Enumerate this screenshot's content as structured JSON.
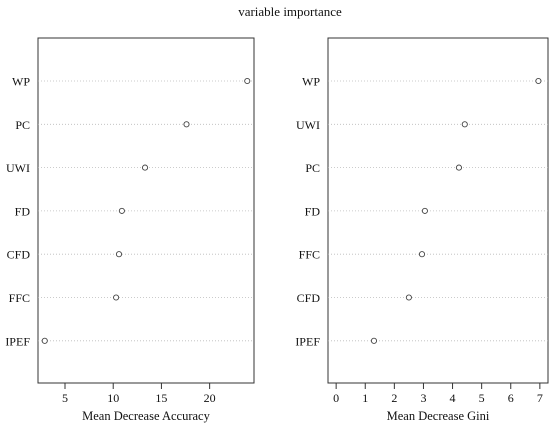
{
  "figure_title": "variable importance",
  "chart_data": [
    {
      "type": "scatter",
      "title": "",
      "xlabel": "Mean Decrease Accuracy",
      "ylabel": "",
      "xlim": [
        2.2,
        24.6
      ],
      "xticks": [
        5,
        10,
        15,
        20
      ],
      "categories": [
        "WP",
        "PC",
        "UWI",
        "FD",
        "CFD",
        "FFC",
        "IPEF"
      ],
      "values": [
        23.9,
        17.6,
        13.3,
        10.9,
        10.6,
        10.3,
        2.9
      ],
      "grid": "dotted horizontal lines at each variable"
    },
    {
      "type": "scatter",
      "title": "",
      "xlabel": "Mean Decrease Gini",
      "ylabel": "",
      "xlim": [
        -0.28,
        7.28
      ],
      "xticks": [
        0,
        1,
        2,
        3,
        4,
        5,
        6,
        7
      ],
      "categories": [
        "WP",
        "UWI",
        "PC",
        "FD",
        "FFC",
        "CFD",
        "IPEF"
      ],
      "values": [
        6.95,
        4.42,
        4.22,
        3.05,
        2.95,
        2.5,
        1.3
      ],
      "grid": "dotted horizontal lines at each variable"
    }
  ]
}
